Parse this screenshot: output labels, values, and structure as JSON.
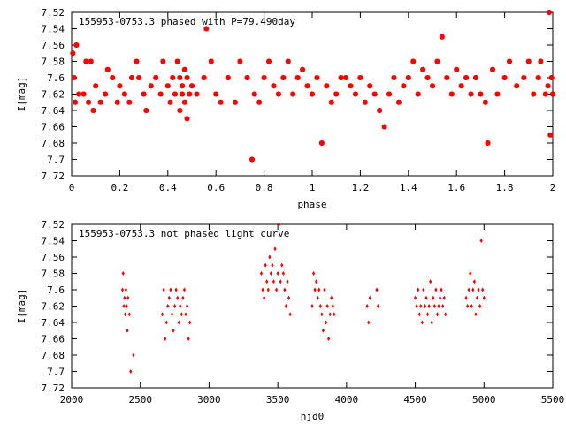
{
  "chart_data": [
    {
      "type": "scatter",
      "title": "155953-0753.3 phased with P=79.490day",
      "xlabel": "phase",
      "ylabel": "I[mag]",
      "xlim": [
        0,
        2
      ],
      "ylim": [
        7.72,
        7.52
      ],
      "y_inverted": true,
      "xticks": [
        "0",
        "0.2",
        "0.4",
        "0.6",
        "0.8",
        "1",
        "1.2",
        "1.4",
        "1.6",
        "1.8",
        "2"
      ],
      "yticks": [
        "7.52",
        "7.54",
        "7.56",
        "7.58",
        "7.6",
        "7.62",
        "7.64",
        "7.66",
        "7.68",
        "7.7",
        "7.72"
      ],
      "marker_color": "#ff0000",
      "marker": "star",
      "points": [
        [
          0.005,
          7.57
        ],
        [
          0.01,
          7.6
        ],
        [
          0.015,
          7.63
        ],
        [
          0.02,
          7.56
        ],
        [
          0.03,
          7.62
        ],
        [
          0.05,
          7.62
        ],
        [
          0.06,
          7.58
        ],
        [
          0.07,
          7.63
        ],
        [
          0.08,
          7.58
        ],
        [
          0.09,
          7.64
        ],
        [
          0.1,
          7.61
        ],
        [
          0.12,
          7.63
        ],
        [
          0.14,
          7.62
        ],
        [
          0.15,
          7.59
        ],
        [
          0.17,
          7.6
        ],
        [
          0.19,
          7.63
        ],
        [
          0.2,
          7.61
        ],
        [
          0.22,
          7.62
        ],
        [
          0.24,
          7.63
        ],
        [
          0.25,
          7.6
        ],
        [
          0.27,
          7.58
        ],
        [
          0.28,
          7.6
        ],
        [
          0.3,
          7.62
        ],
        [
          0.31,
          7.64
        ],
        [
          0.33,
          7.61
        ],
        [
          0.35,
          7.6
        ],
        [
          0.37,
          7.62
        ],
        [
          0.38,
          7.58
        ],
        [
          0.4,
          7.61
        ],
        [
          0.41,
          7.63
        ],
        [
          0.42,
          7.6
        ],
        [
          0.43,
          7.62
        ],
        [
          0.44,
          7.58
        ],
        [
          0.45,
          7.6
        ],
        [
          0.45,
          7.64
        ],
        [
          0.46,
          7.61
        ],
        [
          0.46,
          7.62
        ],
        [
          0.47,
          7.63
        ],
        [
          0.47,
          7.59
        ],
        [
          0.48,
          7.6
        ],
        [
          0.48,
          7.65
        ],
        [
          0.49,
          7.62
        ],
        [
          0.5,
          7.61
        ],
        [
          0.52,
          7.62
        ],
        [
          0.55,
          7.6
        ],
        [
          0.56,
          7.54
        ],
        [
          0.58,
          7.58
        ],
        [
          0.6,
          7.62
        ],
        [
          0.62,
          7.63
        ],
        [
          0.65,
          7.6
        ],
        [
          0.68,
          7.63
        ],
        [
          0.7,
          7.58
        ],
        [
          0.73,
          7.6
        ],
        [
          0.75,
          7.7
        ],
        [
          0.76,
          7.62
        ],
        [
          0.78,
          7.63
        ],
        [
          0.8,
          7.6
        ],
        [
          0.82,
          7.58
        ],
        [
          0.84,
          7.61
        ],
        [
          0.86,
          7.62
        ],
        [
          0.88,
          7.6
        ],
        [
          0.9,
          7.58
        ],
        [
          0.92,
          7.62
        ],
        [
          0.94,
          7.6
        ],
        [
          0.96,
          7.59
        ],
        [
          0.98,
          7.61
        ],
        [
          1.0,
          7.62
        ],
        [
          1.02,
          7.6
        ],
        [
          1.04,
          7.68
        ],
        [
          1.06,
          7.61
        ],
        [
          1.08,
          7.63
        ],
        [
          1.1,
          7.62
        ],
        [
          1.12,
          7.6
        ],
        [
          1.14,
          7.6
        ],
        [
          1.16,
          7.61
        ],
        [
          1.18,
          7.62
        ],
        [
          1.2,
          7.6
        ],
        [
          1.22,
          7.63
        ],
        [
          1.24,
          7.61
        ],
        [
          1.26,
          7.62
        ],
        [
          1.28,
          7.64
        ],
        [
          1.3,
          7.66
        ],
        [
          1.32,
          7.62
        ],
        [
          1.34,
          7.6
        ],
        [
          1.36,
          7.63
        ],
        [
          1.38,
          7.61
        ],
        [
          1.4,
          7.6
        ],
        [
          1.42,
          7.58
        ],
        [
          1.44,
          7.62
        ],
        [
          1.46,
          7.59
        ],
        [
          1.48,
          7.6
        ],
        [
          1.5,
          7.61
        ],
        [
          1.52,
          7.58
        ],
        [
          1.54,
          7.55
        ],
        [
          1.56,
          7.6
        ],
        [
          1.58,
          7.62
        ],
        [
          1.6,
          7.59
        ],
        [
          1.62,
          7.61
        ],
        [
          1.64,
          7.6
        ],
        [
          1.66,
          7.62
        ],
        [
          1.68,
          7.6
        ],
        [
          1.7,
          7.62
        ],
        [
          1.72,
          7.63
        ],
        [
          1.73,
          7.68
        ],
        [
          1.75,
          7.59
        ],
        [
          1.77,
          7.62
        ],
        [
          1.8,
          7.6
        ],
        [
          1.82,
          7.58
        ],
        [
          1.85,
          7.61
        ],
        [
          1.88,
          7.6
        ],
        [
          1.9,
          7.58
        ],
        [
          1.92,
          7.62
        ],
        [
          1.94,
          7.6
        ],
        [
          1.95,
          7.58
        ],
        [
          1.97,
          7.62
        ],
        [
          1.98,
          7.61
        ],
        [
          1.985,
          7.52
        ],
        [
          1.99,
          7.67
        ],
        [
          1.995,
          7.6
        ],
        [
          2.0,
          7.62
        ]
      ]
    },
    {
      "type": "scatter",
      "title": "155953-0753.3 not phased light curve",
      "xlabel": "hjd0",
      "ylabel": "I[mag]",
      "xlim": [
        2000,
        5500
      ],
      "ylim": [
        7.72,
        7.52
      ],
      "y_inverted": true,
      "xticks": [
        "2000",
        "2500",
        "3000",
        "3500",
        "4000",
        "4500",
        "5000",
        "5500"
      ],
      "yticks": [
        "7.52",
        "7.54",
        "7.56",
        "7.58",
        "7.6",
        "7.62",
        "7.64",
        "7.66",
        "7.68",
        "7.7",
        "7.72"
      ],
      "marker_color": "#ff0000",
      "marker": "diamond",
      "points": [
        [
          2370,
          7.6
        ],
        [
          2375,
          7.58
        ],
        [
          2380,
          7.62
        ],
        [
          2385,
          7.61
        ],
        [
          2390,
          7.63
        ],
        [
          2395,
          7.6
        ],
        [
          2400,
          7.62
        ],
        [
          2405,
          7.65
        ],
        [
          2410,
          7.61
        ],
        [
          2420,
          7.63
        ],
        [
          2430,
          7.7
        ],
        [
          2450,
          7.68
        ],
        [
          2660,
          7.63
        ],
        [
          2670,
          7.6
        ],
        [
          2680,
          7.66
        ],
        [
          2690,
          7.64
        ],
        [
          2700,
          7.62
        ],
        [
          2710,
          7.61
        ],
        [
          2720,
          7.6
        ],
        [
          2730,
          7.63
        ],
        [
          2740,
          7.65
        ],
        [
          2750,
          7.62
        ],
        [
          2760,
          7.6
        ],
        [
          2770,
          7.61
        ],
        [
          2780,
          7.64
        ],
        [
          2790,
          7.62
        ],
        [
          2800,
          7.63
        ],
        [
          2810,
          7.61
        ],
        [
          2820,
          7.6
        ],
        [
          2830,
          7.63
        ],
        [
          2840,
          7.62
        ],
        [
          2850,
          7.66
        ],
        [
          2860,
          7.64
        ],
        [
          3380,
          7.58
        ],
        [
          3390,
          7.6
        ],
        [
          3400,
          7.61
        ],
        [
          3410,
          7.57
        ],
        [
          3420,
          7.59
        ],
        [
          3430,
          7.6
        ],
        [
          3440,
          7.56
        ],
        [
          3450,
          7.58
        ],
        [
          3460,
          7.57
        ],
        [
          3470,
          7.59
        ],
        [
          3480,
          7.55
        ],
        [
          3490,
          7.6
        ],
        [
          3500,
          7.58
        ],
        [
          3510,
          7.52
        ],
        [
          3520,
          7.59
        ],
        [
          3530,
          7.57
        ],
        [
          3540,
          7.58
        ],
        [
          3550,
          7.6
        ],
        [
          3560,
          7.62
        ],
        [
          3570,
          7.59
        ],
        [
          3580,
          7.61
        ],
        [
          3590,
          7.63
        ],
        [
          3750,
          7.62
        ],
        [
          3760,
          7.58
        ],
        [
          3770,
          7.6
        ],
        [
          3780,
          7.59
        ],
        [
          3790,
          7.61
        ],
        [
          3800,
          7.6
        ],
        [
          3810,
          7.62
        ],
        [
          3820,
          7.63
        ],
        [
          3830,
          7.65
        ],
        [
          3840,
          7.6
        ],
        [
          3850,
          7.64
        ],
        [
          3860,
          7.62
        ],
        [
          3870,
          7.66
        ],
        [
          3880,
          7.63
        ],
        [
          3890,
          7.61
        ],
        [
          3900,
          7.62
        ],
        [
          3910,
          7.63
        ],
        [
          4150,
          7.62
        ],
        [
          4160,
          7.64
        ],
        [
          4170,
          7.61
        ],
        [
          4220,
          7.6
        ],
        [
          4230,
          7.62
        ],
        [
          4500,
          7.61
        ],
        [
          4510,
          7.62
        ],
        [
          4520,
          7.6
        ],
        [
          4530,
          7.63
        ],
        [
          4540,
          7.62
        ],
        [
          4550,
          7.64
        ],
        [
          4560,
          7.6
        ],
        [
          4570,
          7.62
        ],
        [
          4580,
          7.61
        ],
        [
          4590,
          7.63
        ],
        [
          4600,
          7.62
        ],
        [
          4610,
          7.59
        ],
        [
          4620,
          7.64
        ],
        [
          4630,
          7.61
        ],
        [
          4640,
          7.62
        ],
        [
          4650,
          7.6
        ],
        [
          4660,
          7.63
        ],
        [
          4670,
          7.62
        ],
        [
          4680,
          7.61
        ],
        [
          4690,
          7.6
        ],
        [
          4700,
          7.62
        ],
        [
          4710,
          7.61
        ],
        [
          4720,
          7.63
        ],
        [
          4870,
          7.61
        ],
        [
          4880,
          7.62
        ],
        [
          4890,
          7.6
        ],
        [
          4900,
          7.58
        ],
        [
          4910,
          7.62
        ],
        [
          4920,
          7.6
        ],
        [
          4930,
          7.59
        ],
        [
          4940,
          7.63
        ],
        [
          4950,
          7.61
        ],
        [
          4960,
          7.6
        ],
        [
          4970,
          7.62
        ],
        [
          4980,
          7.54
        ],
        [
          4990,
          7.6
        ],
        [
          5000,
          7.61
        ]
      ]
    }
  ]
}
